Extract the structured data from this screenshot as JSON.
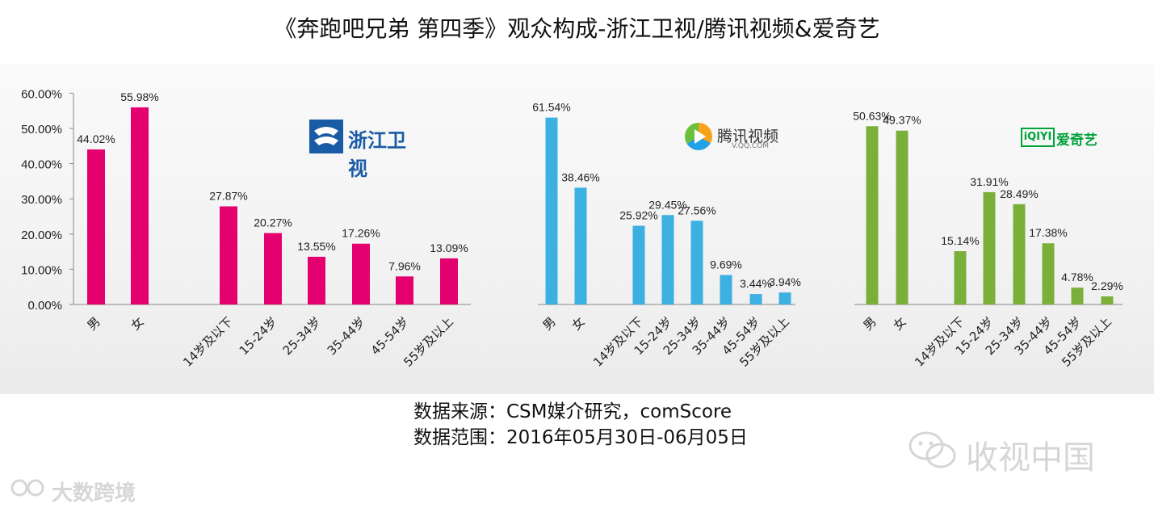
{
  "title": "《奔跑吧兄弟 第四季》观众构成-浙江卫视/腾讯视频&爱奇艺",
  "source_line1": "数据来源：CSM媒介研究，comScore",
  "source_line2": "数据范围：2016年05月30日-06月05日",
  "watermark_left": "大数跨境",
  "watermark_right": "收视中国",
  "logos": {
    "zhejiang": "浙江卫视",
    "tencent": "腾讯视频",
    "tencent_sub": "V.QQ.COM",
    "iqiyi_box": "iQIYI",
    "iqiyi": "爱奇艺"
  },
  "y_ticks": [
    "60.00%",
    "50.00%",
    "40.00%",
    "30.00%",
    "20.00%",
    "10.00%",
    "0.00%"
  ],
  "chart_data": [
    {
      "type": "bar",
      "title": "",
      "categories": [
        "男",
        "女",
        "14岁及以下",
        "15-24岁",
        "25-34岁",
        "35-44岁",
        "45-54岁",
        "55岁及以上"
      ],
      "values": [
        44.02,
        55.98,
        27.87,
        20.27,
        13.55,
        17.26,
        7.96,
        13.09
      ],
      "labels": [
        "44.02%",
        "55.98%",
        "27.87%",
        "20.27%",
        "13.55%",
        "17.26%",
        "7.96%",
        "13.09%"
      ],
      "ylim": [
        0,
        60
      ],
      "color": "#e5006f"
    },
    {
      "type": "bar",
      "title": "",
      "categories": [
        "男",
        "女",
        "14岁及以下",
        "15-24岁",
        "25-34岁",
        "35-44岁",
        "45-54岁",
        "55岁及以上"
      ],
      "values": [
        61.54,
        38.46,
        25.92,
        29.45,
        27.56,
        9.69,
        3.44,
        3.94
      ],
      "labels": [
        "61.54%",
        "38.46%",
        "25.92%",
        "29.45%",
        "27.56%",
        "9.69%",
        "3.44%",
        "3.94%"
      ],
      "ylim": [
        0,
        70
      ],
      "color": "#3cb0e1"
    },
    {
      "type": "bar",
      "title": "",
      "categories": [
        "男",
        "女",
        "14岁及以下",
        "15-24岁",
        "25-34岁",
        "35-44岁",
        "45-54岁",
        "55岁及以上"
      ],
      "values": [
        50.63,
        49.37,
        15.14,
        31.91,
        28.49,
        17.38,
        4.78,
        2.29
      ],
      "labels": [
        "50.63%",
        "49.37%",
        "15.14%",
        "31.91%",
        "28.49%",
        "17.38%",
        "4.78%",
        "2.29%"
      ],
      "ylim": [
        0,
        57
      ],
      "color": "#7ab03a"
    }
  ]
}
